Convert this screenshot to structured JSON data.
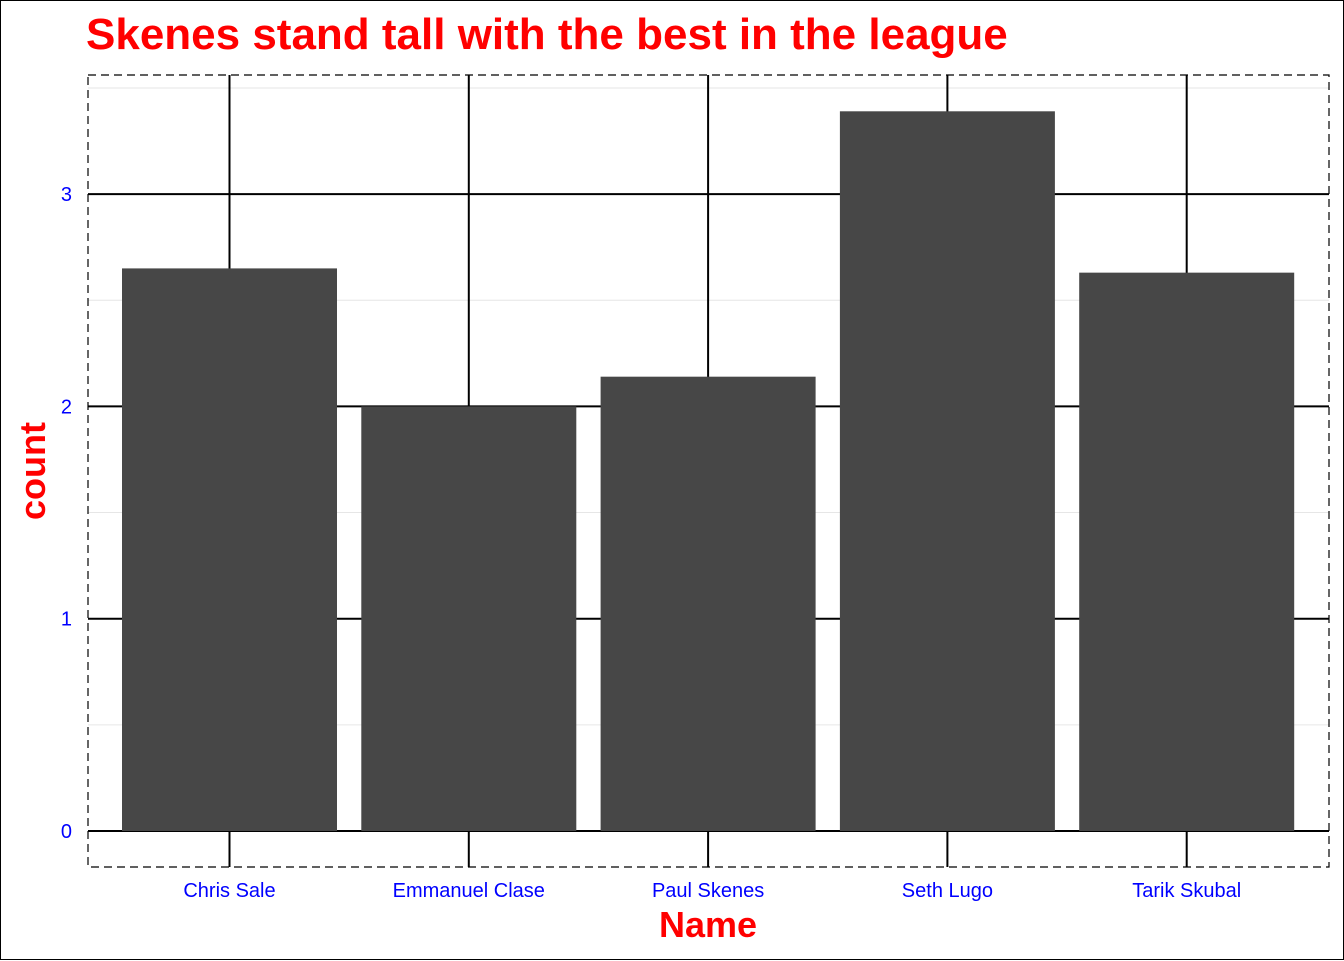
{
  "chart_data": {
    "type": "bar",
    "title": "Skenes stand tall with the best in the league",
    "xlabel": "Name",
    "ylabel": "count",
    "categories": [
      "Chris Sale",
      "Emmanuel Clase",
      "Paul Skenes",
      "Seth Lugo",
      "Tarik Skubal"
    ],
    "values": [
      2.65,
      2.0,
      2.14,
      3.39,
      2.63
    ],
    "ylim": [
      0,
      3.5
    ],
    "y_ticks": [
      0,
      1,
      2,
      3
    ],
    "y_tick_labels": [
      "0",
      "1",
      "2",
      "3"
    ],
    "grid": true,
    "legend": "none",
    "colors": {
      "bar": "#474747",
      "title": "#ff0000",
      "axis_title": "#ff0000",
      "tick_label": "#0000ff",
      "major_grid": "#000000",
      "minor_grid": "#e6e6e6"
    }
  }
}
